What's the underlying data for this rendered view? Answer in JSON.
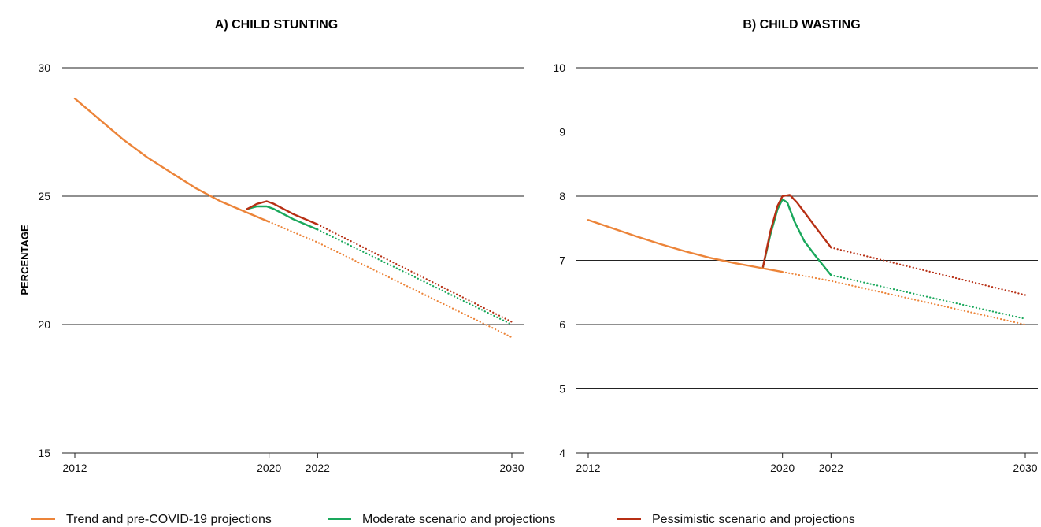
{
  "colors": {
    "trend": "#ec8439",
    "moderate": "#1aa85c",
    "pessimistic": "#b72f14"
  },
  "y_axis_label": "PERCENTAGE",
  "legend": [
    {
      "key": "trend",
      "label": "Trend and pre-COVID-19 projections"
    },
    {
      "key": "moderate",
      "label": "Moderate scenario and projections"
    },
    {
      "key": "pessimistic",
      "label": "Pessimistic scenario and projections"
    }
  ],
  "chart_data": [
    {
      "type": "line",
      "title": "A) CHILD STUNTING",
      "xlabel": "",
      "ylabel": "PERCENTAGE",
      "xlim": [
        2012,
        2030
      ],
      "ylim": [
        15,
        30
      ],
      "x_ticks": [
        2012,
        2020,
        2022,
        2030
      ],
      "y_ticks": [
        15,
        20,
        25,
        30
      ],
      "grid": true,
      "series": [
        {
          "key": "trend",
          "style": "solid",
          "x": [
            2012,
            2013,
            2014,
            2015,
            2016,
            2017,
            2018,
            2019,
            2020
          ],
          "y": [
            28.8,
            28.0,
            27.2,
            26.5,
            25.9,
            25.3,
            24.8,
            24.4,
            24.0
          ]
        },
        {
          "key": "trend",
          "style": "dotted",
          "x": [
            2020,
            2022,
            2030
          ],
          "y": [
            24.0,
            23.2,
            19.5
          ]
        },
        {
          "key": "moderate",
          "style": "solid",
          "x": [
            2019.1,
            2019.5,
            2019.9,
            2020.2,
            2020.6,
            2021.0,
            2021.5,
            2022
          ],
          "y": [
            24.5,
            24.6,
            24.6,
            24.5,
            24.3,
            24.1,
            23.9,
            23.7
          ]
        },
        {
          "key": "moderate",
          "style": "dotted",
          "x": [
            2022,
            2030
          ],
          "y": [
            23.7,
            20.0
          ]
        },
        {
          "key": "pessimistic",
          "style": "solid",
          "x": [
            2019.1,
            2019.5,
            2019.9,
            2020.2,
            2020.6,
            2021.0,
            2021.5,
            2022
          ],
          "y": [
            24.5,
            24.7,
            24.8,
            24.7,
            24.5,
            24.3,
            24.1,
            23.9
          ]
        },
        {
          "key": "pessimistic",
          "style": "dotted",
          "x": [
            2022,
            2030
          ],
          "y": [
            23.9,
            20.1
          ]
        }
      ]
    },
    {
      "type": "line",
      "title": "B) CHILD WASTING",
      "xlabel": "",
      "ylabel": "",
      "xlim": [
        2012,
        2030
      ],
      "ylim": [
        4,
        10
      ],
      "x_ticks": [
        2012,
        2020,
        2022,
        2030
      ],
      "y_ticks": [
        4,
        5,
        6,
        7,
        8,
        9,
        10
      ],
      "grid": true,
      "series": [
        {
          "key": "trend",
          "style": "solid",
          "x": [
            2012,
            2013,
            2014,
            2015,
            2016,
            2017,
            2018,
            2019,
            2020
          ],
          "y": [
            7.63,
            7.5,
            7.37,
            7.25,
            7.14,
            7.04,
            6.96,
            6.89,
            6.82
          ]
        },
        {
          "key": "trend",
          "style": "dotted",
          "x": [
            2020,
            2022,
            2030
          ],
          "y": [
            6.82,
            6.68,
            6.0
          ]
        },
        {
          "key": "moderate",
          "style": "solid",
          "x": [
            2019.2,
            2019.5,
            2019.8,
            2020.0,
            2020.2,
            2020.5,
            2020.9,
            2021.4,
            2022
          ],
          "y": [
            6.9,
            7.4,
            7.8,
            7.95,
            7.9,
            7.6,
            7.3,
            7.05,
            6.77
          ]
        },
        {
          "key": "moderate",
          "style": "dotted",
          "x": [
            2022,
            2030
          ],
          "y": [
            6.77,
            6.09
          ]
        },
        {
          "key": "pessimistic",
          "style": "solid",
          "x": [
            2019.2,
            2019.5,
            2019.8,
            2020.0,
            2020.3,
            2020.6,
            2021.0,
            2021.4,
            2022
          ],
          "y": [
            6.9,
            7.45,
            7.85,
            8.0,
            8.02,
            7.9,
            7.7,
            7.5,
            7.2
          ]
        },
        {
          "key": "pessimistic",
          "style": "dotted",
          "x": [
            2022,
            2030
          ],
          "y": [
            7.2,
            6.46
          ]
        }
      ]
    }
  ]
}
